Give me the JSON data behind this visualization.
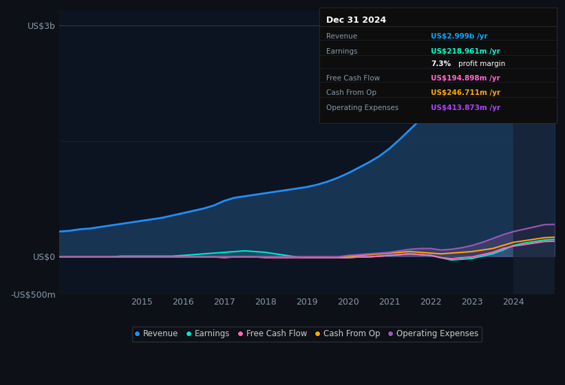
{
  "background_color": "#0d1117",
  "plot_bg_color": "#0d1421",
  "title_box": {
    "date": "Dec 31 2024",
    "rows": [
      {
        "label": "Revenue",
        "value": "US$2.999b /yr",
        "value_color": "#00aaff"
      },
      {
        "label": "Earnings",
        "value": "US$218.961m /yr",
        "value_color": "#00ffcc"
      },
      {
        "label": "",
        "value": "7.3% profit margin",
        "value_color": "#ffffff"
      },
      {
        "label": "Free Cash Flow",
        "value": "US$194.898m /yr",
        "value_color": "#ff66cc"
      },
      {
        "label": "Cash From Op",
        "value": "US$246.711m /yr",
        "value_color": "#ffaa00"
      },
      {
        "label": "Operating Expenses",
        "value": "US$413.873m /yr",
        "value_color": "#aa44ff"
      }
    ]
  },
  "years": [
    2013,
    2013.25,
    2013.5,
    2013.75,
    2014,
    2014.25,
    2014.5,
    2014.75,
    2015,
    2015.25,
    2015.5,
    2015.75,
    2016,
    2016.25,
    2016.5,
    2016.75,
    2017,
    2017.25,
    2017.5,
    2017.75,
    2018,
    2018.25,
    2018.5,
    2018.75,
    2019,
    2019.25,
    2019.5,
    2019.75,
    2020,
    2020.25,
    2020.5,
    2020.75,
    2021,
    2021.25,
    2021.5,
    2021.75,
    2022,
    2022.25,
    2022.5,
    2022.75,
    2023,
    2023.25,
    2023.5,
    2023.75,
    2024,
    2024.25,
    2024.5,
    2024.75,
    2025
  ],
  "revenue": [
    0.32,
    0.33,
    0.35,
    0.36,
    0.38,
    0.4,
    0.42,
    0.44,
    0.46,
    0.48,
    0.5,
    0.53,
    0.56,
    0.59,
    0.62,
    0.66,
    0.72,
    0.76,
    0.78,
    0.8,
    0.82,
    0.84,
    0.86,
    0.88,
    0.9,
    0.93,
    0.97,
    1.02,
    1.08,
    1.15,
    1.22,
    1.3,
    1.4,
    1.52,
    1.65,
    1.78,
    1.92,
    2.05,
    2.18,
    2.3,
    2.4,
    2.5,
    2.6,
    2.7,
    2.8,
    2.85,
    2.9,
    2.96,
    2.999
  ],
  "earnings": [
    -0.01,
    -0.01,
    -0.01,
    -0.01,
    -0.01,
    -0.01,
    0.0,
    0.0,
    0.0,
    0.0,
    0.0,
    0.0,
    0.01,
    0.02,
    0.03,
    0.04,
    0.05,
    0.06,
    0.07,
    0.06,
    0.05,
    0.03,
    0.01,
    -0.01,
    -0.02,
    -0.02,
    -0.02,
    -0.02,
    -0.02,
    -0.01,
    -0.01,
    0.0,
    0.01,
    0.02,
    0.03,
    0.02,
    0.01,
    -0.02,
    -0.05,
    -0.04,
    -0.03,
    0.0,
    0.03,
    0.08,
    0.14,
    0.17,
    0.19,
    0.21,
    0.219
  ],
  "free_cash_flow": [
    -0.01,
    -0.01,
    -0.01,
    -0.01,
    -0.01,
    -0.01,
    -0.01,
    -0.01,
    -0.01,
    -0.01,
    -0.01,
    -0.01,
    -0.01,
    -0.01,
    -0.01,
    -0.01,
    -0.02,
    -0.01,
    -0.01,
    -0.01,
    -0.02,
    -0.02,
    -0.02,
    -0.02,
    -0.02,
    -0.02,
    -0.02,
    -0.02,
    -0.02,
    -0.01,
    -0.01,
    0.0,
    0.01,
    0.02,
    0.03,
    0.02,
    0.01,
    -0.02,
    -0.03,
    -0.02,
    -0.01,
    0.02,
    0.05,
    0.1,
    0.13,
    0.15,
    0.17,
    0.19,
    0.195
  ],
  "cash_from_op": [
    -0.01,
    -0.01,
    -0.01,
    -0.01,
    -0.01,
    -0.01,
    -0.01,
    -0.01,
    -0.01,
    -0.01,
    -0.01,
    -0.01,
    -0.01,
    -0.01,
    -0.01,
    -0.01,
    -0.01,
    -0.01,
    -0.01,
    -0.01,
    -0.01,
    -0.01,
    -0.01,
    -0.01,
    -0.01,
    -0.01,
    -0.01,
    -0.01,
    0.0,
    0.01,
    0.02,
    0.03,
    0.04,
    0.05,
    0.06,
    0.05,
    0.04,
    0.03,
    0.04,
    0.05,
    0.06,
    0.08,
    0.1,
    0.14,
    0.18,
    0.2,
    0.22,
    0.24,
    0.247
  ],
  "operating_expenses": [
    -0.01,
    -0.01,
    -0.01,
    -0.01,
    -0.01,
    -0.01,
    -0.01,
    -0.01,
    -0.01,
    -0.01,
    -0.01,
    -0.01,
    -0.01,
    -0.01,
    -0.01,
    -0.01,
    -0.01,
    -0.01,
    -0.01,
    -0.01,
    -0.01,
    -0.01,
    -0.01,
    -0.01,
    -0.01,
    -0.01,
    -0.01,
    -0.01,
    0.01,
    0.02,
    0.03,
    0.04,
    0.05,
    0.07,
    0.09,
    0.1,
    0.1,
    0.08,
    0.09,
    0.11,
    0.14,
    0.18,
    0.23,
    0.28,
    0.32,
    0.35,
    0.38,
    0.41,
    0.414
  ],
  "ylim": [
    -0.5,
    3.2
  ],
  "yticks": [
    -0.5,
    0.0,
    3.0
  ],
  "ytick_labels": [
    "-US$500m",
    "US$0",
    "US$3b"
  ],
  "xticks": [
    2015,
    2016,
    2017,
    2018,
    2019,
    2020,
    2021,
    2022,
    2023,
    2024
  ],
  "revenue_color": "#1e90ff",
  "revenue_fill": "#1a3a5c",
  "earnings_color": "#00e5cc",
  "fcf_color": "#ff69b4",
  "cashop_color": "#ffa500",
  "opex_color": "#9b59b6",
  "highlight_bg": "#162030",
  "legend_items": [
    {
      "label": "Revenue",
      "color": "#1e90ff"
    },
    {
      "label": "Earnings",
      "color": "#00e5cc"
    },
    {
      "label": "Free Cash Flow",
      "color": "#ff69b4"
    },
    {
      "label": "Cash From Op",
      "color": "#ffa500"
    },
    {
      "label": "Operating Expenses",
      "color": "#9b59b6"
    }
  ]
}
